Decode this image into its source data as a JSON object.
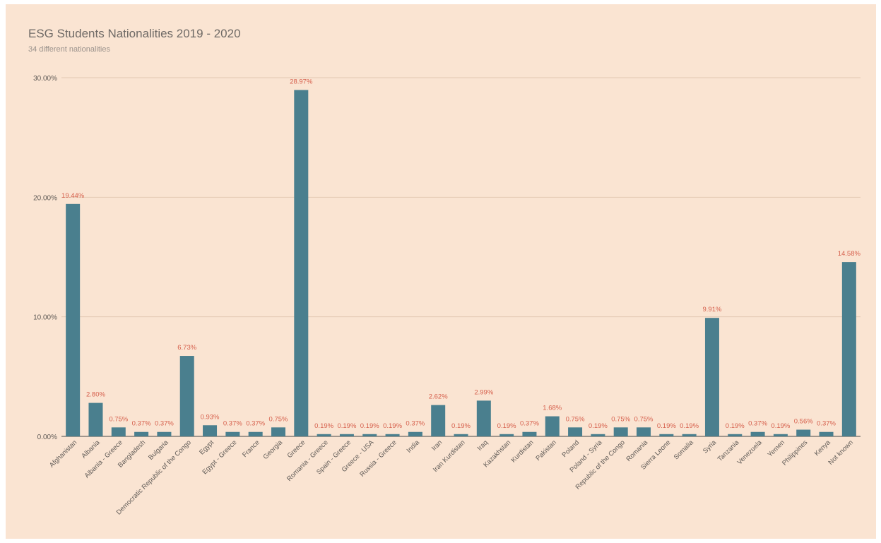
{
  "title": "ESG Students Nationalities 2019 - 2020",
  "subtitle": "34 different nationalities",
  "colors": {
    "background": "#fae4d2",
    "bar": "#4a7f8e",
    "data_label": "#d6604d",
    "gridline": "#e3c9b2",
    "axis_text": "#5f5a56"
  },
  "chart_data": {
    "type": "bar",
    "title": "ESG Students Nationalities 2019 - 2020",
    "subtitle": "34 different nationalities",
    "xlabel": "",
    "ylabel": "",
    "ylim": [
      0,
      30
    ],
    "y_ticks": [
      0,
      10,
      20,
      30
    ],
    "y_tick_labels": [
      "0.00%",
      "10.00%",
      "20.00%",
      "30.00%"
    ],
    "grid": true,
    "legend": "none",
    "categories": [
      "Afghanistan",
      "Albania",
      "Albania - Greece",
      "Bangladesh",
      "Bulgaria",
      "Democratic Republic of the Congo",
      "Egypt",
      "Egypt - Greece",
      "France",
      "Georgia",
      "Greece",
      "Romania - Greece",
      "Spain - Greece",
      "Greece - USA",
      "Russia - Greece",
      "India",
      "Iran",
      "Iran Kurdistan",
      "Iraq",
      "Kazakhstan",
      "Kurdistan",
      "Pakistan",
      "Poland",
      "Poland - Syria",
      "Republic of the Congo",
      "Romania",
      "Sierra Leone",
      "Somalia",
      "Syria",
      "Tanzania",
      "Venezuela",
      "Yemen",
      "Philippines",
      "Kenya",
      "Not known"
    ],
    "values": [
      19.44,
      2.8,
      0.75,
      0.37,
      0.37,
      6.73,
      0.93,
      0.37,
      0.37,
      0.75,
      28.97,
      0.19,
      0.19,
      0.19,
      0.19,
      0.37,
      2.62,
      0.19,
      2.99,
      0.19,
      0.37,
      1.68,
      0.75,
      0.19,
      0.75,
      0.75,
      0.19,
      0.19,
      9.91,
      0.19,
      0.37,
      0.19,
      0.56,
      0.37,
      14.58
    ],
    "data_labels": [
      "19.44%",
      "2.80%",
      "0.75%",
      "0.37%",
      "0.37%",
      "6.73%",
      "0.93%",
      "0.37%",
      "0.37%",
      "0.75%",
      "28.97%",
      "0.19%",
      "0.19%",
      "0.19%",
      "0.19%",
      "0.37%",
      "2.62%",
      "0.19%",
      "2.99%",
      "0.19%",
      "0.37%",
      "1.68%",
      "0.75%",
      "0.19%",
      "0.75%",
      "0.75%",
      "0.19%",
      "0.19%",
      "9.91%",
      "0.19%",
      "0.37%",
      "0.19%",
      "0.56%",
      "0.37%",
      "14.58%"
    ]
  }
}
